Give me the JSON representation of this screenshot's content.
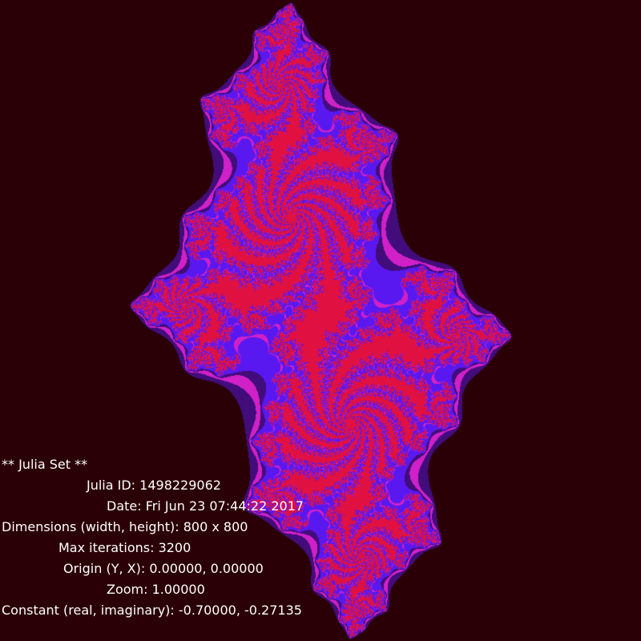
{
  "info": {
    "title": "** Julia Set **",
    "julia_id": "Julia ID: 1498229062",
    "date": "Date: Fri Jun 23 07:44:22 2017",
    "dimensions": "Dimensions (width, height): 800 x 800",
    "max_iterations": "Max iterations: 3200",
    "origin": "Origin (Y, X): 0.00000, 0.00000",
    "zoom": "Zoom: 1.00000",
    "constant": "Constant (real, imaginary): -0.70000, -0.27135"
  },
  "fractal": {
    "constant_real": -0.7,
    "constant_imaginary": -0.27135,
    "zoom": 1.0,
    "origin": [
      0,
      0
    ],
    "colors": {
      "background": "#2a0006",
      "body": "#5a18f0",
      "highlight": "#d020c8",
      "core": "#e01040"
    }
  }
}
